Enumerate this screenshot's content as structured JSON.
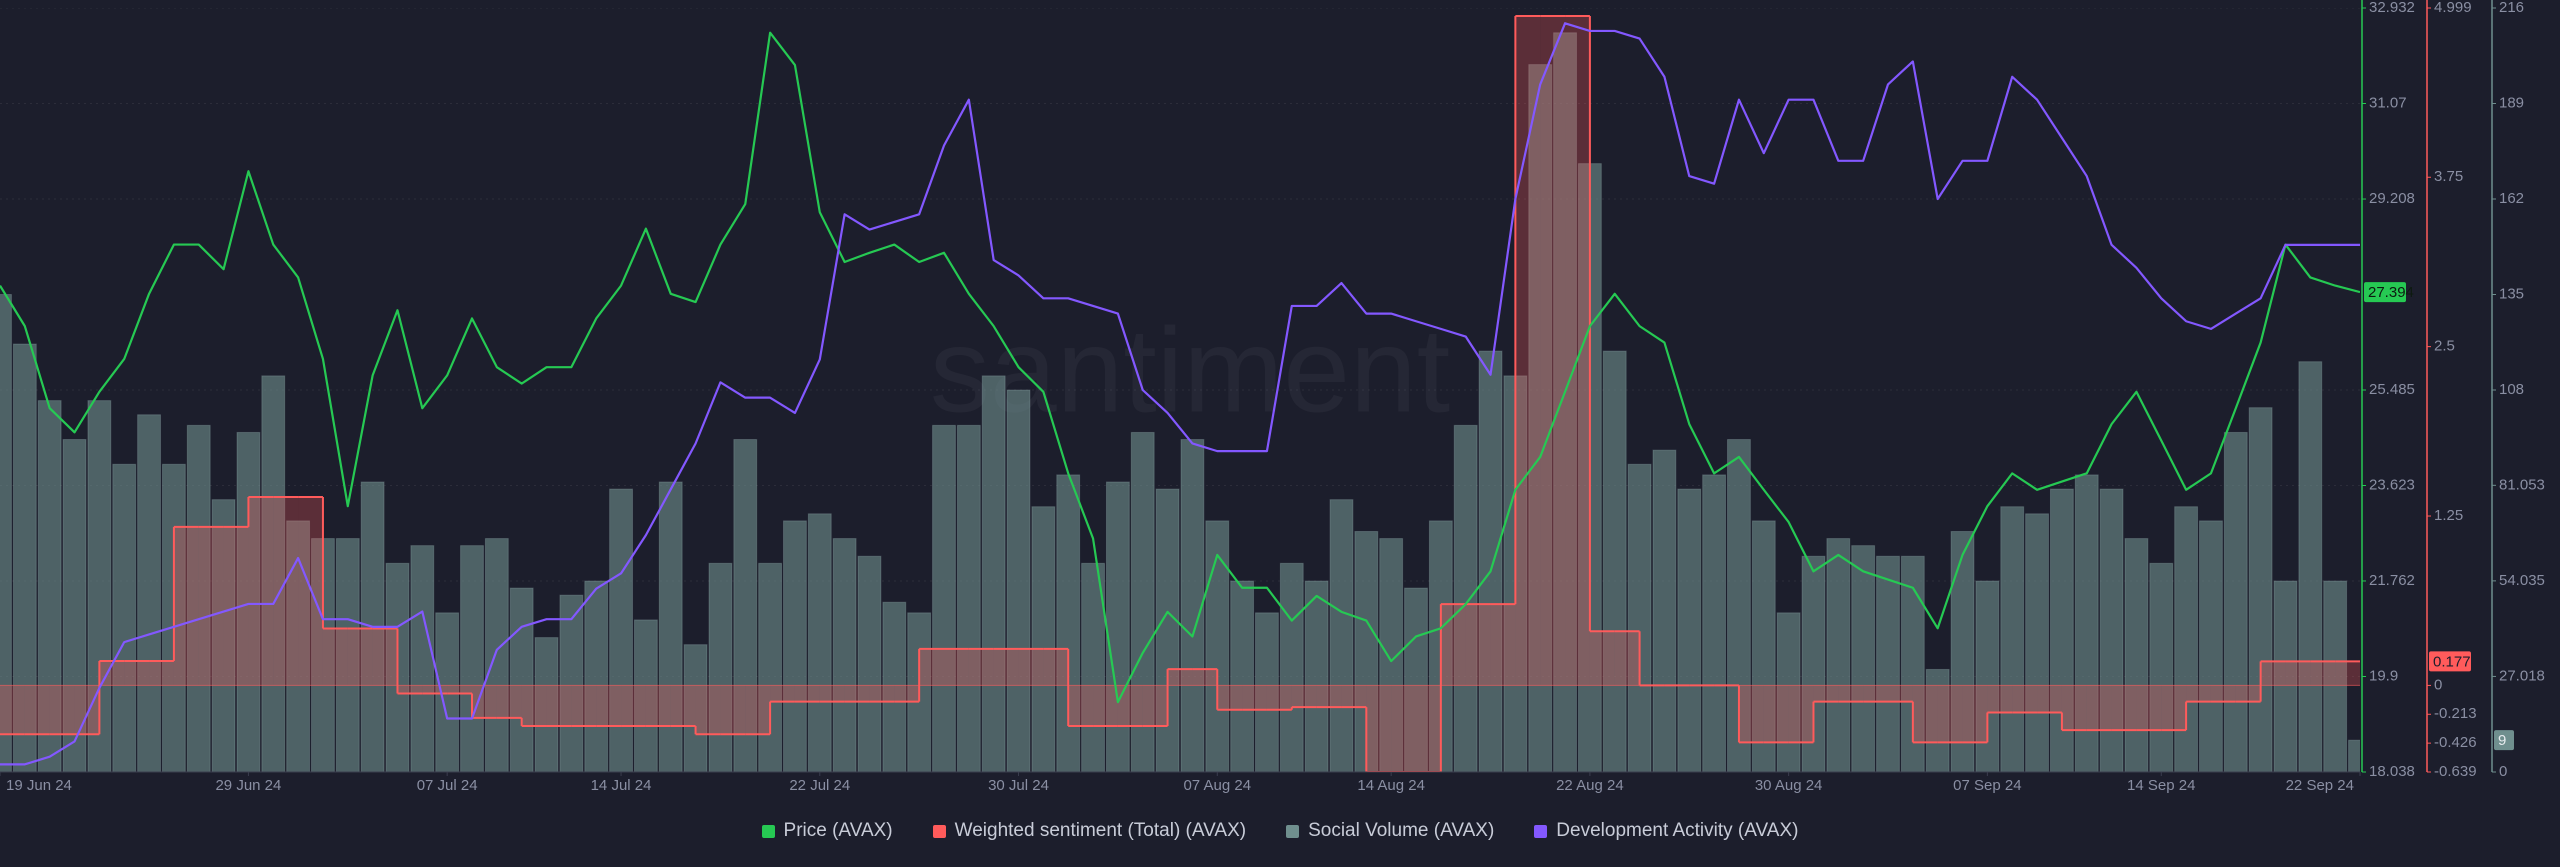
{
  "chart_data": {
    "type": "combo",
    "watermark": "santiment",
    "x": [
      "2024-06-19",
      "2024-06-20",
      "2024-06-21",
      "2024-06-22",
      "2024-06-23",
      "2024-06-24",
      "2024-06-25",
      "2024-06-26",
      "2024-06-27",
      "2024-06-28",
      "2024-06-29",
      "2024-06-30",
      "2024-07-01",
      "2024-07-02",
      "2024-07-03",
      "2024-07-04",
      "2024-07-05",
      "2024-07-06",
      "2024-07-07",
      "2024-07-08",
      "2024-07-09",
      "2024-07-10",
      "2024-07-11",
      "2024-07-12",
      "2024-07-13",
      "2024-07-14",
      "2024-07-15",
      "2024-07-16",
      "2024-07-17",
      "2024-07-18",
      "2024-07-19",
      "2024-07-20",
      "2024-07-21",
      "2024-07-22",
      "2024-07-23",
      "2024-07-24",
      "2024-07-25",
      "2024-07-26",
      "2024-07-27",
      "2024-07-28",
      "2024-07-29",
      "2024-07-30",
      "2024-07-31",
      "2024-08-01",
      "2024-08-02",
      "2024-08-03",
      "2024-08-04",
      "2024-08-05",
      "2024-08-06",
      "2024-08-07",
      "2024-08-08",
      "2024-08-09",
      "2024-08-10",
      "2024-08-11",
      "2024-08-12",
      "2024-08-13",
      "2024-08-14",
      "2024-08-15",
      "2024-08-16",
      "2024-08-17",
      "2024-08-18",
      "2024-08-19",
      "2024-08-20",
      "2024-08-21",
      "2024-08-22",
      "2024-08-23",
      "2024-08-24",
      "2024-08-25",
      "2024-08-26",
      "2024-08-27",
      "2024-08-28",
      "2024-08-29",
      "2024-08-30",
      "2024-08-31",
      "2024-09-01",
      "2024-09-02",
      "2024-09-03",
      "2024-09-04",
      "2024-09-05",
      "2024-09-06",
      "2024-09-07",
      "2024-09-08",
      "2024-09-09",
      "2024-09-10",
      "2024-09-11",
      "2024-09-12",
      "2024-09-13",
      "2024-09-14",
      "2024-09-15",
      "2024-09-16",
      "2024-09-17",
      "2024-09-18",
      "2024-09-19",
      "2024-09-20",
      "2024-09-21",
      "2024-09-22"
    ],
    "xlim": [
      "2024-06-19",
      "2024-09-22"
    ],
    "xticks": [
      {
        "value": "2024-06-19",
        "label": "19 Jun 24"
      },
      {
        "value": "2024-06-29",
        "label": "29 Jun 24"
      },
      {
        "value": "2024-07-07",
        "label": "07 Jul 24"
      },
      {
        "value": "2024-07-14",
        "label": "14 Jul 24"
      },
      {
        "value": "2024-07-22",
        "label": "22 Jul 24"
      },
      {
        "value": "2024-07-30",
        "label": "30 Jul 24"
      },
      {
        "value": "2024-08-07",
        "label": "07 Aug 24"
      },
      {
        "value": "2024-08-14",
        "label": "14 Aug 24"
      },
      {
        "value": "2024-08-22",
        "label": "22 Aug 24"
      },
      {
        "value": "2024-08-30",
        "label": "30 Aug 24"
      },
      {
        "value": "2024-09-07",
        "label": "07 Sep 24"
      },
      {
        "value": "2024-09-14",
        "label": "14 Sep 24"
      },
      {
        "value": "2024-09-22",
        "label": "22 Sep 24"
      }
    ],
    "ylim": [
      18.038,
      32.932
    ],
    "yticks": [
      18.038,
      19.9,
      21.762,
      23.623,
      25.485,
      29.208,
      31.07,
      32.932
    ],
    "y2lim": [
      -0.639,
      4.999
    ],
    "y2ticks": [
      -0.639,
      -0.426,
      -0.213,
      0,
      1.25,
      2.5,
      3.75,
      4.999
    ],
    "y3lim": [
      0,
      216
    ],
    "y3ticks": [
      0,
      27.018,
      54.035,
      81.053,
      108,
      135,
      162,
      189,
      216
    ],
    "y4lim": [
      0,
      100
    ],
    "grid": true,
    "series": [
      {
        "name": "Price (AVAX)",
        "type": "line",
        "axis": "y",
        "color": "#26c953",
        "values": [
          27.52,
          26.73,
          25.13,
          24.66,
          25.45,
          26.09,
          27.36,
          28.32,
          28.32,
          27.84,
          29.75,
          28.32,
          27.68,
          26.09,
          23.22,
          25.77,
          27.04,
          25.13,
          25.77,
          26.88,
          25.93,
          25.61,
          25.93,
          25.93,
          26.88,
          27.52,
          28.63,
          27.36,
          27.2,
          28.32,
          29.11,
          32.45,
          31.82,
          28.95,
          27.98,
          28.16,
          28.32,
          27.98,
          28.16,
          27.36,
          26.73,
          25.93,
          25.45,
          23.86,
          22.59,
          19.4,
          20.36,
          21.16,
          20.68,
          22.27,
          21.63,
          21.63,
          20.99,
          21.47,
          21.16,
          20.99,
          20.2,
          20.68,
          20.84,
          21.31,
          21.95,
          23.54,
          24.18,
          25.45,
          26.73,
          27.36,
          26.73,
          26.41,
          24.82,
          23.86,
          24.18,
          23.54,
          22.91,
          21.95,
          22.27,
          21.95,
          21.79,
          21.63,
          20.84,
          22.27,
          23.22,
          23.86,
          23.54,
          23.7,
          23.86,
          24.82,
          25.45,
          24.5,
          23.54,
          23.86,
          25.13,
          26.41,
          28.32,
          27.68,
          27.52,
          27.394
        ]
      },
      {
        "name": "Weighted sentiment (Total) (AVAX)",
        "type": "step",
        "axis": "y2",
        "color": "#ff5b5b",
        "values": [
          -0.36,
          -0.36,
          -0.36,
          -0.36,
          0.18,
          0.18,
          0.18,
          1.17,
          1.17,
          1.17,
          1.39,
          1.39,
          1.39,
          0.42,
          0.42,
          0.42,
          -0.06,
          -0.06,
          -0.06,
          -0.24,
          -0.24,
          -0.3,
          -0.3,
          -0.3,
          -0.3,
          -0.3,
          -0.3,
          -0.3,
          -0.36,
          -0.36,
          -0.36,
          -0.12,
          -0.12,
          -0.12,
          -0.12,
          -0.12,
          -0.12,
          0.27,
          0.27,
          0.27,
          0.27,
          0.27,
          0.27,
          -0.3,
          -0.3,
          -0.3,
          -0.3,
          0.12,
          0.12,
          -0.18,
          -0.18,
          -0.18,
          -0.16,
          -0.16,
          -0.16,
          -0.639,
          -0.639,
          -0.639,
          0.6,
          0.6,
          0.6,
          4.94,
          4.94,
          4.94,
          0.4,
          0.4,
          0,
          0,
          0,
          0,
          -0.42,
          -0.42,
          -0.42,
          -0.12,
          -0.12,
          -0.12,
          -0.12,
          -0.42,
          -0.42,
          -0.42,
          -0.2,
          -0.2,
          -0.2,
          -0.33,
          -0.33,
          -0.33,
          -0.33,
          -0.33,
          -0.12,
          -0.12,
          -0.12,
          0.177,
          0.177,
          0.177,
          0.177,
          0.177
        ]
      },
      {
        "name": "Social Volume (AVAX)",
        "type": "bar",
        "axis": "y3",
        "color": "#6f8f8e",
        "values": [
          135,
          121,
          105,
          94,
          105,
          87,
          101,
          87,
          98,
          77,
          96,
          112,
          71,
          66,
          66,
          82,
          59,
          64,
          45,
          64,
          66,
          52,
          38,
          50,
          54,
          80,
          43,
          82,
          36,
          59,
          94,
          59,
          71,
          73,
          66,
          61,
          48,
          45,
          98,
          98,
          112,
          108,
          75,
          84,
          59,
          82,
          96,
          80,
          94,
          71,
          54,
          45,
          59,
          54,
          77,
          68,
          66,
          52,
          71,
          98,
          119,
          112,
          200,
          209,
          172,
          119,
          87,
          91,
          80,
          84,
          94,
          71,
          45,
          61,
          66,
          64,
          61,
          61,
          29,
          68,
          54,
          75,
          73,
          80,
          84,
          80,
          66,
          59,
          75,
          71,
          96,
          103,
          54,
          116,
          54,
          9
        ]
      },
      {
        "name": "Development Activity (AVAX)",
        "type": "line",
        "axis": "y4",
        "color": "#8358ff",
        "values": [
          1,
          1,
          2,
          4,
          11,
          17,
          18,
          19,
          20,
          21,
          22,
          22,
          28,
          20,
          20,
          19,
          19,
          21,
          7,
          7,
          16,
          19,
          20,
          20,
          24,
          26,
          31,
          37,
          43,
          51,
          49,
          49,
          47,
          54,
          73,
          71,
          72,
          73,
          82,
          88,
          67,
          65,
          62,
          62,
          61,
          60,
          50,
          47,
          43,
          42,
          42,
          42,
          61,
          61,
          64,
          60,
          60,
          59,
          58,
          57,
          52,
          75,
          90,
          98,
          97,
          97,
          96,
          91,
          78,
          77,
          88,
          81,
          88,
          88,
          80,
          80,
          90,
          93,
          75,
          80,
          80,
          91,
          88,
          83,
          78,
          69,
          66,
          62,
          59,
          58,
          60,
          62,
          69,
          69,
          69,
          69
        ]
      }
    ]
  }
}
